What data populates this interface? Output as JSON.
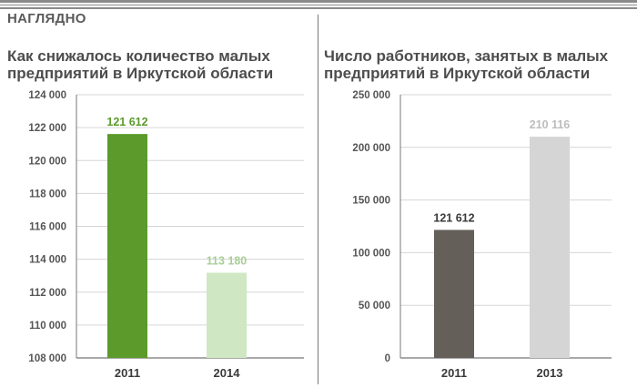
{
  "header": {
    "section_label": "НАГЛЯДНО"
  },
  "chart_data": [
    {
      "type": "bar",
      "title_line1": "Как снижалось количество малых",
      "title_line2": "предприятий в Иркутской области",
      "categories": [
        "2011",
        "2014"
      ],
      "values": [
        121612,
        113180
      ],
      "value_labels": [
        "121 612",
        "113 180"
      ],
      "bar_colors": [
        "#5b9a2b",
        "#cfe7c3"
      ],
      "label_colors": [
        "#5b9a2b",
        "#a9cf98"
      ],
      "ylim": [
        108000,
        124000
      ],
      "yticks": [
        108000,
        110000,
        112000,
        114000,
        116000,
        118000,
        120000,
        122000,
        124000
      ],
      "ytick_labels": [
        "108 000",
        "110 000",
        "112 000",
        "114 000",
        "116 000",
        "118 000",
        "120 000",
        "122 000",
        "124 000"
      ],
      "grid": true
    },
    {
      "type": "bar",
      "title_line1": "Число работников,  занятых в малых",
      "title_line2": "предприятий в Иркутской области",
      "categories": [
        "2011",
        "2013"
      ],
      "values": [
        121612,
        210116
      ],
      "value_labels": [
        "121 612",
        "210 116"
      ],
      "bar_colors": [
        "#655f5a",
        "#d5d5d5"
      ],
      "label_colors": [
        "#3a3a3a",
        "#bdbdbd"
      ],
      "ylim": [
        0,
        250000
      ],
      "yticks": [
        0,
        50000,
        100000,
        150000,
        200000,
        250000
      ],
      "ytick_labels": [
        "0",
        "50 000",
        "100 000",
        "150 000",
        "200 000",
        "250 000"
      ],
      "grid": true
    }
  ]
}
